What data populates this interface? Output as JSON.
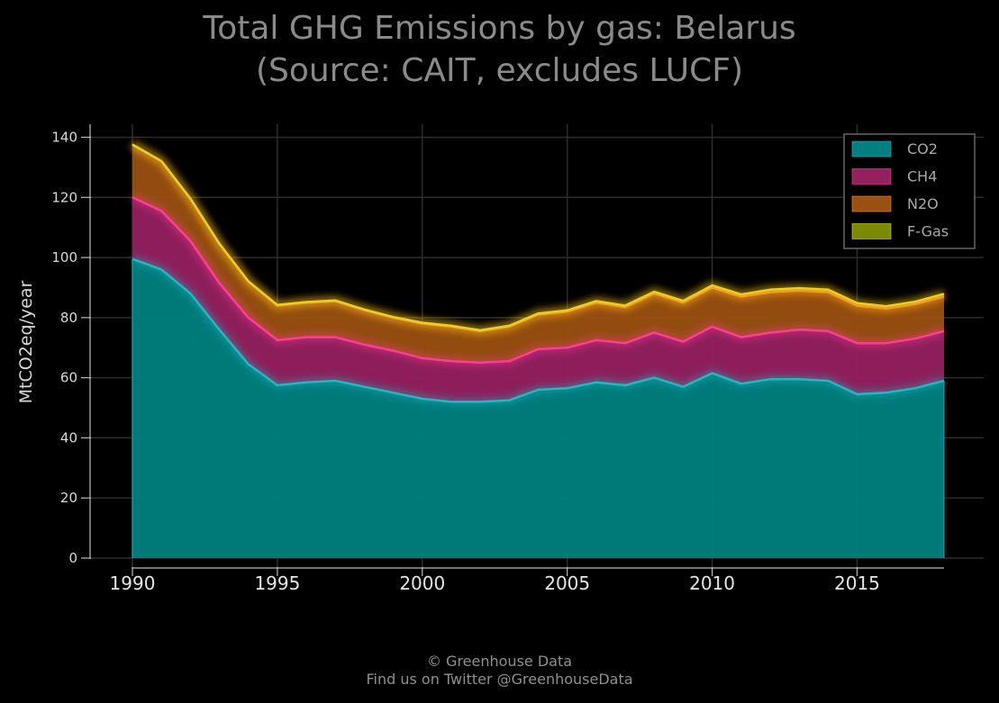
{
  "chart_data": {
    "type": "area",
    "stacked": true,
    "title_line1": "Total GHG Emissions by gas: Belarus",
    "title_line2": "(Source: CAIT, excludes LUCF)",
    "ylabel": "MtCO2eq/year",
    "xlabel": "",
    "xlim": [
      1990,
      2018
    ],
    "ylim": [
      0,
      145
    ],
    "x_ticks": [
      1990,
      1995,
      2000,
      2005,
      2010,
      2015
    ],
    "y_ticks": [
      0,
      20,
      40,
      60,
      80,
      100,
      120,
      140
    ],
    "grid": true,
    "legend_position": "top-right",
    "x": [
      1990,
      1991,
      1992,
      1993,
      1994,
      1995,
      1996,
      1997,
      1998,
      1999,
      2000,
      2001,
      2002,
      2003,
      2004,
      2005,
      2006,
      2007,
      2008,
      2009,
      2010,
      2011,
      2012,
      2013,
      2014,
      2015,
      2016,
      2017,
      2018
    ],
    "series": [
      {
        "name": "CO2",
        "fill": "#008080",
        "line": "#21b8c0",
        "values": [
          99.5,
          96,
          88,
          76,
          64.5,
          57.5,
          58.5,
          59,
          57,
          55,
          53,
          52,
          52,
          52.5,
          56,
          56.5,
          58.5,
          57.5,
          60,
          57,
          61.5,
          58,
          59.5,
          59.5,
          59,
          54.5,
          55,
          56.5,
          59
        ]
      },
      {
        "name": "CH4",
        "fill": "#952060",
        "line": "#ff3d96",
        "values": [
          20.5,
          19.5,
          17.5,
          15.5,
          15.5,
          15,
          15,
          14.5,
          14,
          14,
          13.5,
          13.5,
          13,
          13,
          13.5,
          13.5,
          14,
          14,
          15,
          15,
          15.5,
          15.5,
          15.5,
          16.5,
          16.5,
          17,
          16.5,
          16.5,
          16.5
        ]
      },
      {
        "name": "N2O",
        "fill": "#9a5010",
        "line": "#ff8a20",
        "values": [
          17.5,
          16.5,
          14,
          13,
          12,
          11.5,
          11.5,
          12,
          11.5,
          11,
          11.5,
          11.5,
          10.5,
          11.5,
          11.5,
          12,
          12.5,
          12,
          13,
          13,
          13,
          13.5,
          13.5,
          13,
          13,
          12.5,
          11.5,
          11.5,
          11.5
        ]
      },
      {
        "name": "F-Gas",
        "fill": "#7a8a00",
        "line": "#e8d020",
        "values": [
          0.1,
          0.1,
          0.1,
          0.1,
          0.1,
          0.2,
          0.2,
          0.2,
          0.2,
          0.2,
          0.3,
          0.3,
          0.3,
          0.3,
          0.4,
          0.4,
          0.5,
          0.5,
          0.6,
          0.6,
          0.7,
          0.7,
          0.8,
          0.8,
          0.8,
          0.8,
          0.8,
          0.8,
          0.9
        ]
      }
    ]
  },
  "footer": {
    "line1": "© Greenhouse Data",
    "line2": "Find us on Twitter @GreenhouseData"
  }
}
